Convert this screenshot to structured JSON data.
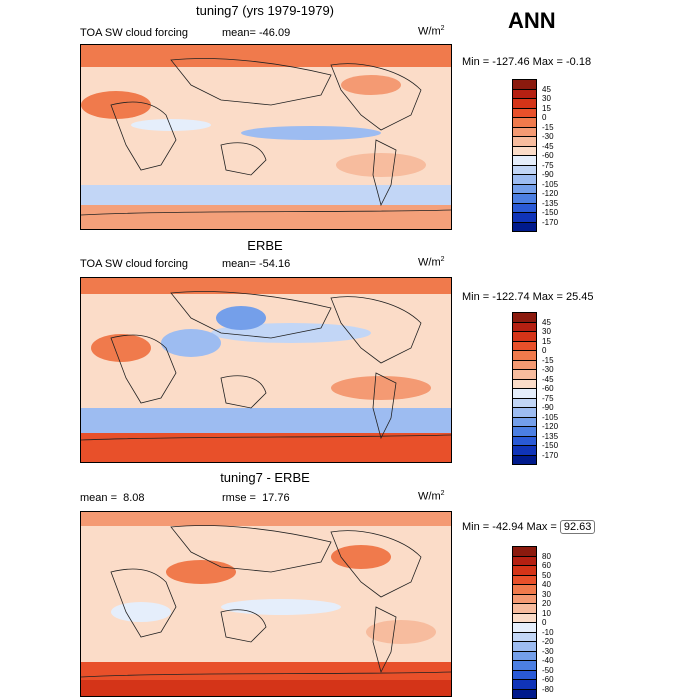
{
  "header": {
    "season": "ANN"
  },
  "panels": [
    {
      "title": "tuning7 (yrs 1979-1979)",
      "left_label": "TOA SW cloud forcing",
      "mean_label": "mean=",
      "mean_value": "-46.09",
      "units": "W/m",
      "units_sup": "2",
      "min_label": "Min =",
      "min_value": "-127.46",
      "max_label": "Max =",
      "max_value": "-0.18"
    },
    {
      "title": "ERBE",
      "left_label": "TOA SW cloud forcing",
      "mean_label": "mean=",
      "mean_value": "-54.16",
      "units": "W/m",
      "units_sup": "2",
      "min_label": "Min =",
      "min_value": "-122.74",
      "max_label": "Max =",
      "max_value": "25.45"
    },
    {
      "title": "tuning7 - ERBE",
      "mean_label": "mean =",
      "mean_value": "8.08",
      "rmse_label": "rmse =",
      "rmse_value": "17.76",
      "units": "W/m",
      "units_sup": "2",
      "min_label": "Min =",
      "min_value": "-42.94",
      "max_label": "Max =",
      "max_value": "92.63"
    }
  ],
  "colorbars": {
    "field": {
      "levels": [
        "45",
        "30",
        "15",
        "0",
        "-15",
        "-30",
        "-45",
        "-60",
        "-75",
        "-90",
        "-105",
        "-120",
        "-135",
        "-150",
        "-170"
      ],
      "colors": [
        "#8b1a0e",
        "#b52012",
        "#d43418",
        "#e8502a",
        "#f07a4c",
        "#f49a73",
        "#f7bc9e",
        "#fbdcc8",
        "#e5eefb",
        "#c2d6f6",
        "#9dbcf1",
        "#749fea",
        "#4c7fe2",
        "#2a5ad6",
        "#1034b8",
        "#001a8c"
      ]
    },
    "diff": {
      "levels": [
        "80",
        "60",
        "50",
        "40",
        "30",
        "20",
        "10",
        "0",
        "-10",
        "-20",
        "-30",
        "-40",
        "-50",
        "-60",
        "-80"
      ],
      "colors": [
        "#8b1a0e",
        "#b52012",
        "#d43418",
        "#e8502a",
        "#f07a4c",
        "#f49a73",
        "#f7bc9e",
        "#fbdcc8",
        "#e5eefb",
        "#c2d6f6",
        "#9dbcf1",
        "#749fea",
        "#4c7fe2",
        "#2a5ad6",
        "#1034b8",
        "#001a8c"
      ]
    }
  }
}
